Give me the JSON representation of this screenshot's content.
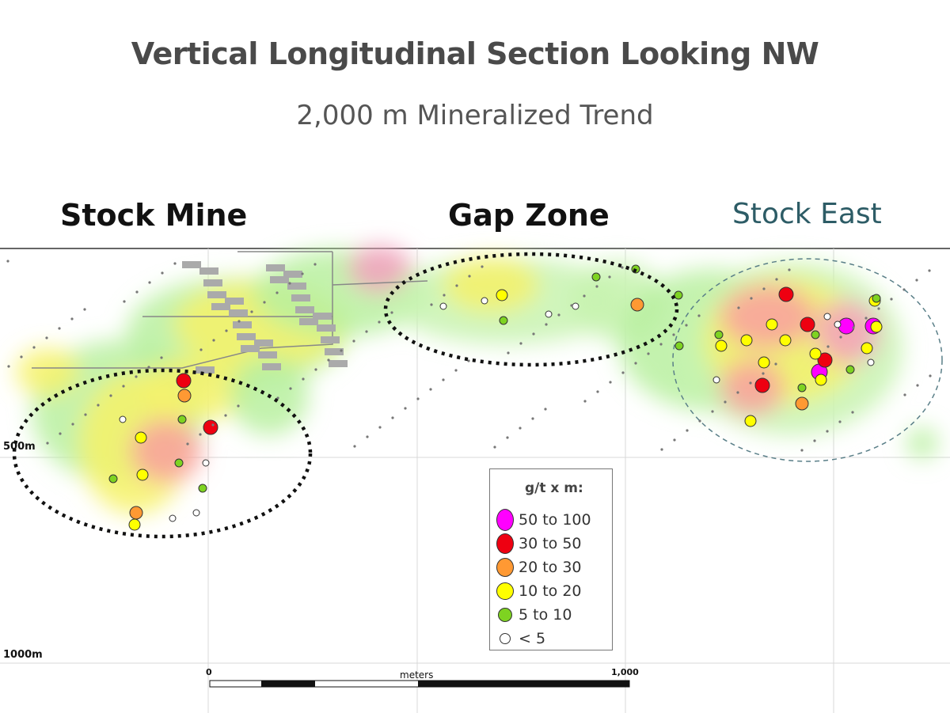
{
  "header": {
    "title": "Vertical Longitudinal Section Looking NW",
    "subtitle": "2,000 m Mineralized Trend"
  },
  "zones": [
    {
      "label": "Stock Mine",
      "color": "#111111"
    },
    {
      "label": "Gap Zone",
      "color": "#111111"
    },
    {
      "label": "Stock East",
      "color": "#2d5c66"
    }
  ],
  "depth_labels": [
    "500m",
    "1000m"
  ],
  "legend": {
    "title": "g/t  x m:",
    "items": [
      {
        "label": "50 to 100",
        "color": "#ff00ff"
      },
      {
        "label": "30 to 50",
        "color": "#ee0011"
      },
      {
        "label": "20 to 30",
        "color": "#ff9933"
      },
      {
        "label": "10 to 20",
        "color": "#ffff00"
      },
      {
        "label": "5 to 10",
        "color": "#7ed321"
      },
      {
        "label": "< 5",
        "color": "#ffffff"
      }
    ]
  },
  "scale_bar": {
    "start": "0",
    "end": "1,000",
    "unit": "meters"
  }
}
